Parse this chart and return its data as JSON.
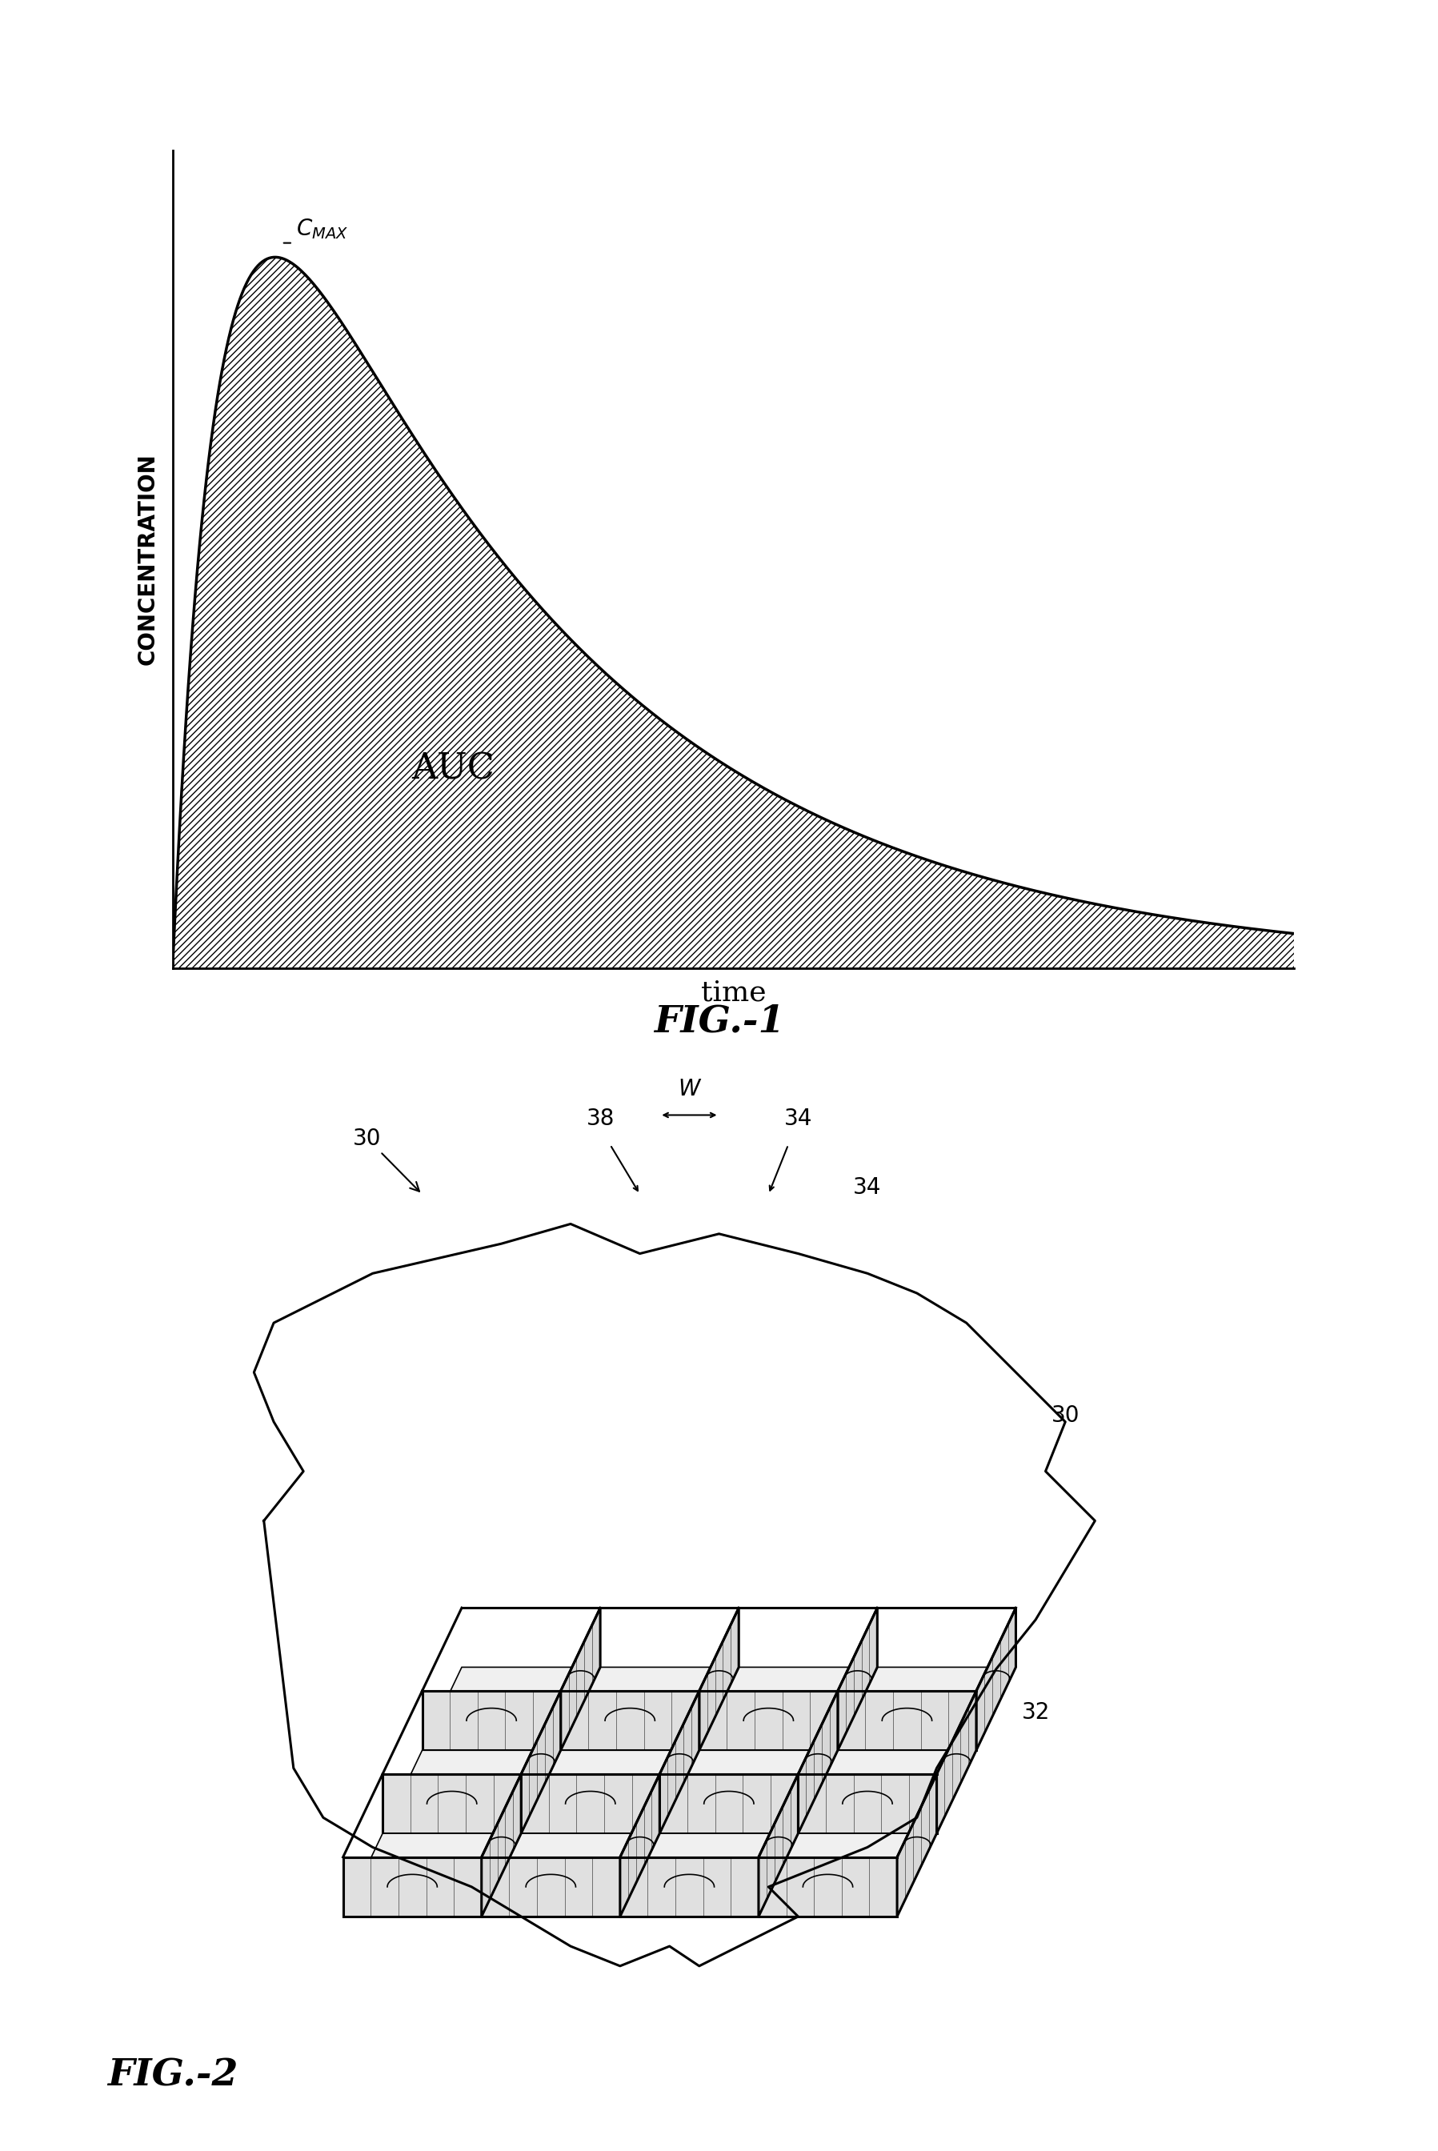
{
  "fig1": {
    "title": "FIG.-1",
    "xlabel": "time",
    "ylabel": "CONCENTRATION",
    "cmax_label": "C",
    "cmax_sub": "MAX",
    "auc_label": "AUC",
    "hatch_pattern": "////",
    "line_color": "#000000",
    "hatch_color": "#000000",
    "background": "#ffffff"
  },
  "fig2": {
    "title": "FIG.-2",
    "labels": {
      "30_topleft": "30",
      "38": "38",
      "34a": "34",
      "34b": "34",
      "30_right": "30",
      "32": "32",
      "W": "W"
    }
  }
}
